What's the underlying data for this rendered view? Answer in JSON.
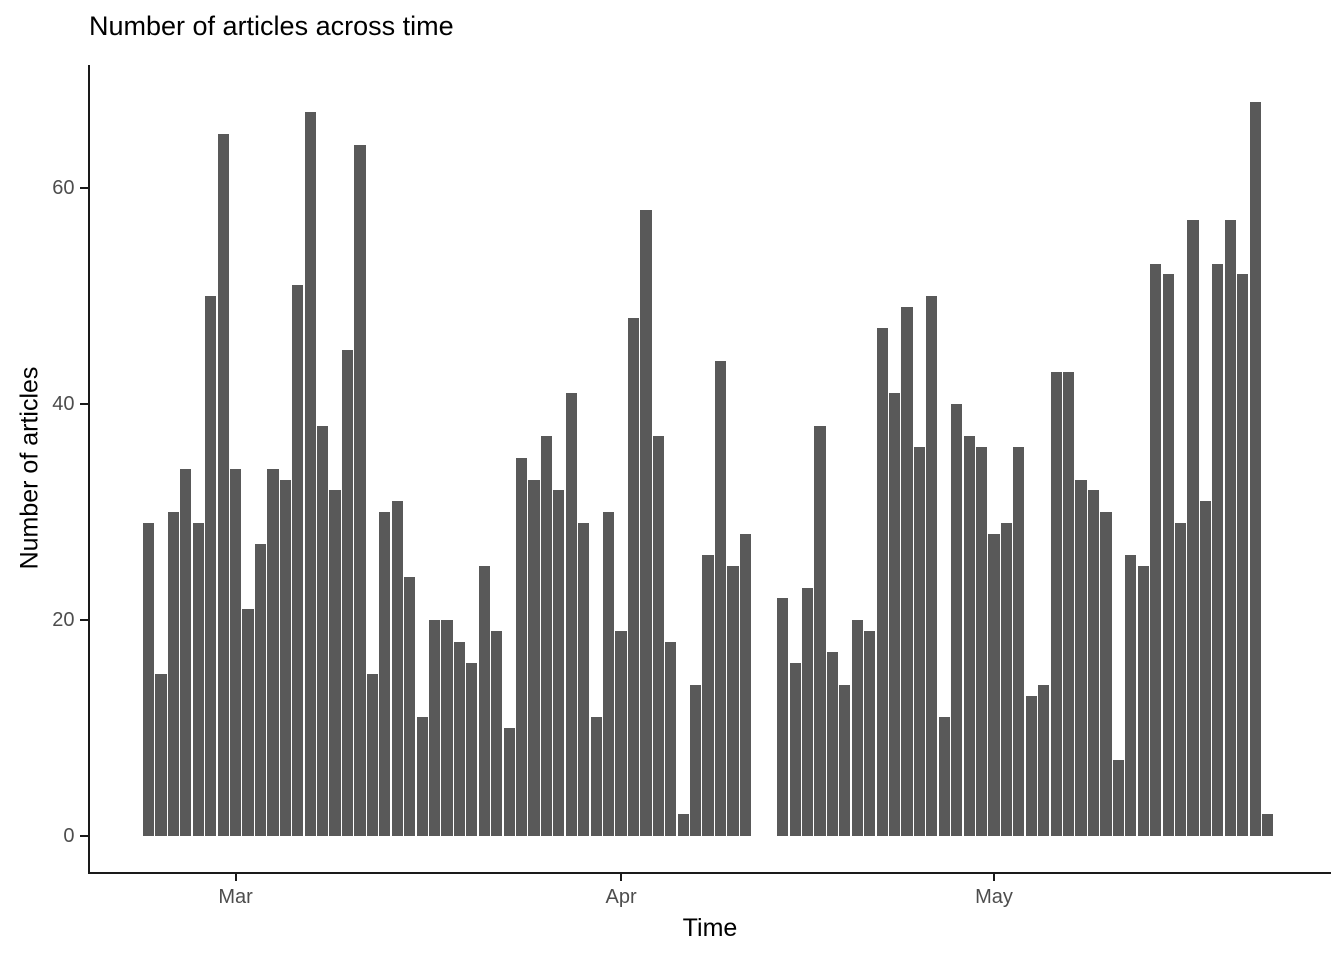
{
  "chart_data": {
    "type": "bar",
    "title": "Number of articles across time",
    "xlabel": "Time",
    "ylabel": "Number of articles",
    "y_ticks": [
      0,
      20,
      40,
      60
    ],
    "ylim": [
      0,
      68
    ],
    "x_ticks": [
      {
        "label": "Mar",
        "slot": 7
      },
      {
        "label": "Apr",
        "slot": 38
      },
      {
        "label": "May",
        "slot": 68
      }
    ],
    "grid": "off",
    "legend": "none",
    "bar_color": "#595959",
    "axis_text_color": "#4d4d4d",
    "axis_line_color": "#1a1a1a",
    "background_color": "#ffffff",
    "values": [
      29,
      15,
      30,
      34,
      29,
      50,
      65,
      34,
      21,
      27,
      34,
      33,
      51,
      67,
      38,
      32,
      45,
      64,
      15,
      30,
      31,
      24,
      11,
      20,
      20,
      18,
      16,
      25,
      19,
      10,
      35,
      33,
      37,
      32,
      41,
      29,
      11,
      30,
      19,
      48,
      58,
      37,
      18,
      2,
      14,
      26,
      44,
      25,
      28,
      null,
      null,
      22,
      16,
      23,
      38,
      17,
      14,
      20,
      19,
      47,
      41,
      49,
      36,
      50,
      11,
      40,
      37,
      36,
      28,
      29,
      36,
      13,
      14,
      43,
      43,
      33,
      32,
      30,
      7,
      26,
      25,
      53,
      52,
      29,
      57,
      31,
      53,
      57,
      52,
      68,
      2
    ]
  }
}
